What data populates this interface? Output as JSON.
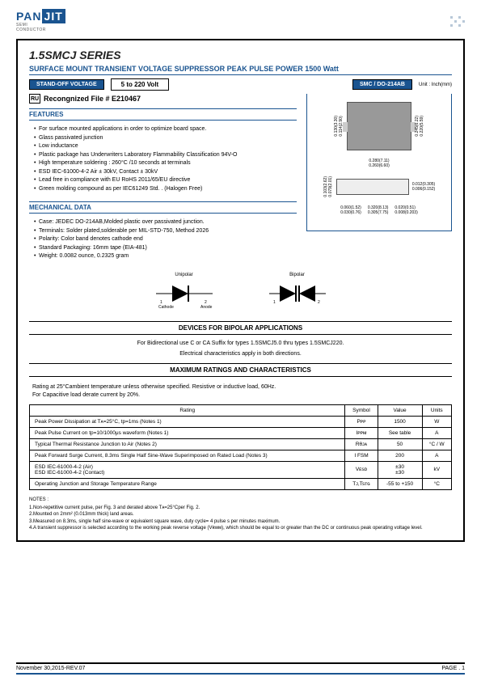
{
  "logo": {
    "left": "PAN",
    "right": "JIT",
    "sub": "SEMI\nCONDUCTOR"
  },
  "series_title": "1.5SMCJ SERIES",
  "subtitle": "SURFACE MOUNT TRANSIENT VOLTAGE SUPPRESSOR PEAK PULSE POWER 1500 Watt",
  "standoff_badge": "STAND-OFF VOLTAGE",
  "voltage_range": "5  to  220 Volt",
  "package_badge": "SMC / DO-214AB",
  "unit_label": "Unit : Inch(mm)",
  "recognized": "Recongnized File # E210467",
  "features_header": "FEATURES",
  "features": [
    "For surface mounted applications in order to optimize board space.",
    "Glass passivated junction",
    "Low inductance",
    "Plastic package has Underwriters Laboratory Flammability Classification 94V-O",
    "High temperature soldering : 260°C /10 seconds at terminals",
    "ESD IEC-61000-4-2 Air ± 30kV, Contact ± 30kV",
    "Lead free in compliance with EU RoHS 2011/65/EU directive",
    "Green molding compound as per IEC61249 Std. . (Halogen Free)"
  ],
  "mechdata_header": "MECHANICAL DATA",
  "mechdata": [
    "Case: JEDEC DO-214AB,Molded plastic over passivated junction.",
    "Terminals: Solder plated,solderable per MIL-STD-750, Method 2026",
    "Polarity: Color band denotes cathode end",
    "Standard Packaging: 16mm tape (EIA-481)",
    "Weight: 0.0082 ounce, 0.2325 gram"
  ],
  "diode_labels": {
    "unipolar": "Unipolar",
    "bipolar": "Bipolar",
    "cathode": "Cathode",
    "anode": "Anode"
  },
  "bipolar_header": "DEVICES FOR BIPOLAR APPLICATIONS",
  "bipolar_text1": "For Bidirectional use C or CA Suffix for types 1.5SMCJ5.0 thru types 1.5SMCJ220.",
  "bipolar_text2": "Electrical characteristics apply in both directions.",
  "maxratings_header": "MAXIMUM RATINGS AND CHARACTERISTICS",
  "rating_note1": "Rating at 25°Cambient temperature unless otherwise specified. Resistive or inductive load, 60Hz.",
  "rating_note2": "For Capacitive load derate current by 20%.",
  "table": {
    "headers": [
      "Rating",
      "Symbol",
      "Value",
      "Units"
    ],
    "rows": [
      [
        "Peak Power Dissipation at Tᴀ=25°C, tp=1ms (Notes 1)",
        "Pᴘᴘ",
        "1500",
        "W"
      ],
      [
        "Peak Pulse Current on tp=10/1000μs waveform (Notes 1)",
        "Iᴘᴘᴍ",
        "See table",
        "A"
      ],
      [
        "Typical Thermal Resistance Junction to Air (Notes 2)",
        "Rθᴊᴀ",
        "50",
        "°C / W"
      ],
      [
        "Peak Forward Surge Current, 8.3ms Single Half Sine-Wave Superimposed on Rated Load (Notes 3)",
        "I FSM",
        "200",
        "A"
      ],
      [
        "ESD IEC-61000-4-2 (Air)\nESD IEC-61000-4-2 (Contact)",
        "Vᴇsᴅ",
        "±30\n±30",
        "kV"
      ],
      [
        "Operating Junction and Storage Temperature Range",
        "Tᴊ,Tsᴛɢ",
        "-55 to +150",
        "°C"
      ]
    ]
  },
  "notes_title": "NOTES :",
  "notes": [
    "1.Non-repetitive current pulse, per Fig. 3 and derated above Tᴀ=25°Cper Fig. 2.",
    "2.Mounted on 2mm² (0.013mm thick) land areas.",
    "3.Measured on 8.3ms, single half sine-wave or equivalent square wave, duty cycle= 4 pulse s per minutes maximum.",
    "4.A transient suppressor is selected according to the working peak reverse voltage (Vʀᴡᴍ), which should be equal to or greater than the DC or continuous peak operating voltage level."
  ],
  "footer": {
    "left": "November 30,2015-REV.07",
    "right": "PAGE  .  1"
  },
  "dims": {
    "top_h": "0.130(3.30)\n0.114(2.90)",
    "top_w": "0.280(7.11)\n0.260(6.60)",
    "right_h": "0.245(6.22)\n0.220(5.59)",
    "side_h": "0.103(2.62)\n0.079(2.01)",
    "lead_w": "0.060(1.52)\n0.030(0.76)",
    "lead_gap": "0.012(0.305)\n0.006(0.152)",
    "bot_w1": "0.320(8.13)\n0.305(7.75)",
    "bot_w2": "0.020(0.51)\n0.008(0.203)"
  }
}
